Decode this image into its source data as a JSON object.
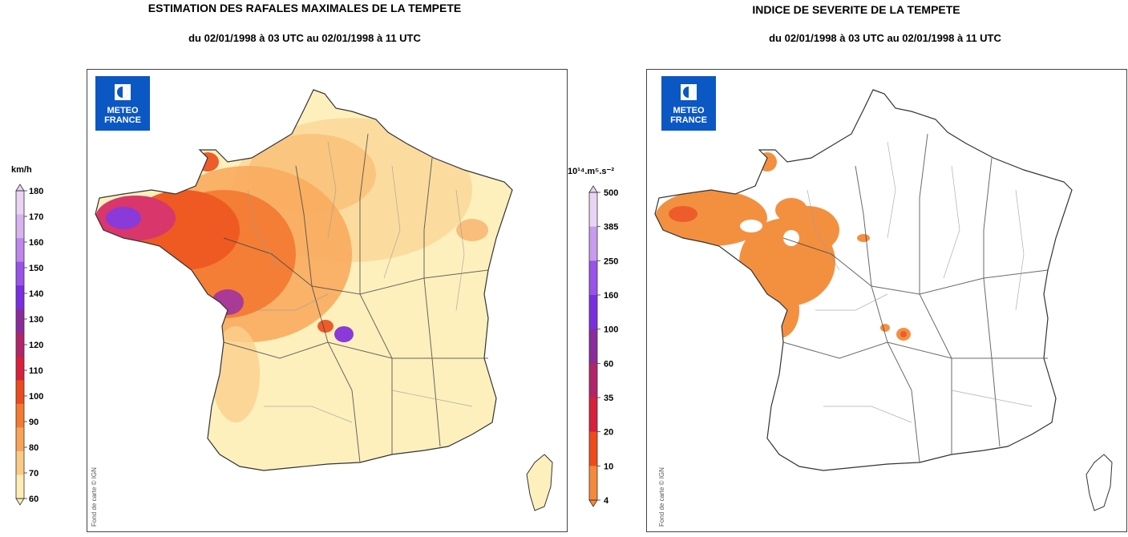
{
  "left_panel": {
    "title": "ESTIMATION DES RAFALES MAXIMALES DE LA TEMPETE",
    "subtitle": "du 02/01/1998 à 03 UTC au 02/01/1998 à 11 UTC",
    "logo_line1": "METEO",
    "logo_line2": "FRANCE",
    "credit": "Fond de carte © IGN",
    "colorbar": {
      "unit": "km/h",
      "ticks": [
        "180",
        "170",
        "160",
        "150",
        "140",
        "130",
        "120",
        "110",
        "100",
        "90",
        "80",
        "70",
        "60"
      ],
      "colors": [
        "#e9d4f3",
        "#d7b3ef",
        "#bf87ec",
        "#9a52ea",
        "#7a2ee0",
        "#8a2a9c",
        "#b1246a",
        "#d81f3b",
        "#ee4a1d",
        "#f57a30",
        "#f8a358",
        "#fbcb85",
        "#fdecb4"
      ]
    }
  },
  "right_panel": {
    "title": "INDICE DE SEVERITE DE LA TEMPETE",
    "subtitle": "du 02/01/1998 à 03 UTC au 02/01/1998 à 11 UTC",
    "logo_line1": "METEO",
    "logo_line2": "FRANCE",
    "credit": "Fond de carte © IGN",
    "colorbar": {
      "unit": "10¹⁴.m⁵.s⁻²",
      "ticks": [
        "500",
        "385",
        "250",
        "160",
        "100",
        "60",
        "35",
        "20",
        "10",
        "4"
      ],
      "colors": [
        "#e9d4f3",
        "#c79cee",
        "#9a52ea",
        "#7a2ee0",
        "#8a2a9c",
        "#b1246a",
        "#d81f3b",
        "#f04a1a",
        "#f6883a"
      ]
    }
  },
  "colors": {
    "logo_blue": "#0b57c4",
    "land_base": "#fdf0bd",
    "severity_orange": "#f39040"
  }
}
